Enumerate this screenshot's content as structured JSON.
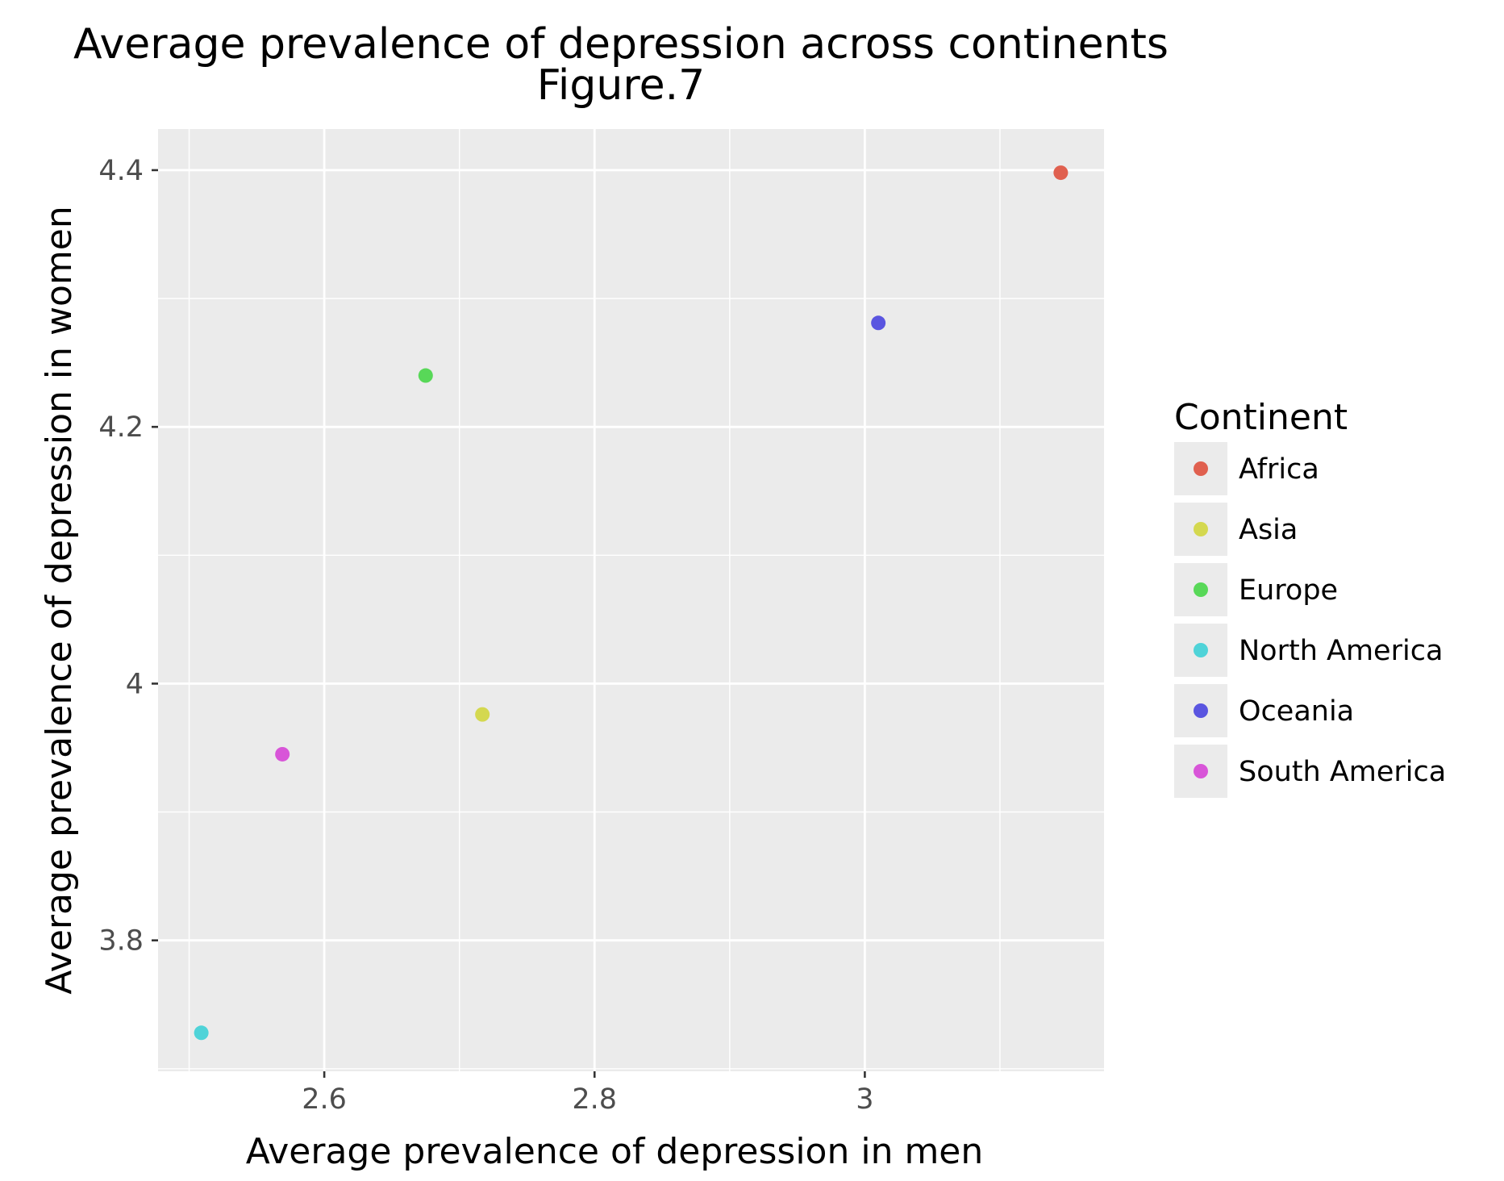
{
  "chart_data": {
    "type": "scatter",
    "title": "Average prevalence of depression across continents",
    "subtitle": "Figure.7",
    "xlabel": "Average prevalence of depression in men",
    "ylabel": "Average prevalence of depression in women",
    "xlim": [
      2.477,
      3.177
    ],
    "ylim": [
      3.698,
      4.432
    ],
    "x_ticks": [
      2.6,
      2.8,
      3.0
    ],
    "x_tick_labels": [
      "2.6",
      "2.8",
      "3"
    ],
    "y_ticks": [
      3.8,
      4.0,
      4.2,
      4.4
    ],
    "y_tick_labels": [
      "3.8",
      "4",
      "4.2",
      "4.4"
    ],
    "grid": true,
    "legend_title": "Continent",
    "legend_position": "right",
    "series": [
      {
        "name": "Africa",
        "color": "#e0604f",
        "x": 3.145,
        "y": 4.398
      },
      {
        "name": "Asia",
        "color": "#d4d84f",
        "x": 2.717,
        "y": 3.976
      },
      {
        "name": "Europe",
        "color": "#58d858",
        "x": 2.675,
        "y": 4.24
      },
      {
        "name": "North America",
        "color": "#4fd3d8",
        "x": 2.509,
        "y": 3.728
      },
      {
        "name": "Oceania",
        "color": "#5a55e0",
        "x": 3.01,
        "y": 4.281
      },
      {
        "name": "South America",
        "color": "#d855d8",
        "x": 2.569,
        "y": 3.945
      }
    ]
  }
}
